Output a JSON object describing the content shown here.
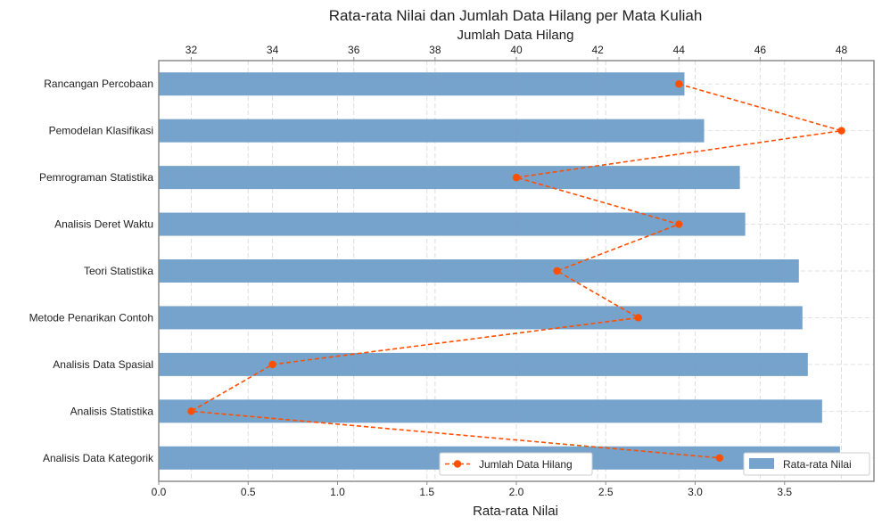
{
  "chart_data": {
    "type": "bar",
    "orientation": "horizontal",
    "title": "Rata-rata Nilai dan Jumlah Data Hilang per Mata Kuliah",
    "categories": [
      "Rancangan Percobaan",
      "Pemodelan Klasifikasi",
      "Pemrograman Statistika",
      "Analisis Deret Waktu",
      "Teori Statistika",
      "Metode Penarikan Contoh",
      "Analisis Data Spasial",
      "Analisis Statistika",
      "Analisis Data Kategorik"
    ],
    "bar_series": {
      "name": "Rata-rata Nilai",
      "color": "#6f9ec8",
      "values": [
        2.94,
        3.05,
        3.25,
        3.28,
        3.58,
        3.6,
        3.63,
        3.71,
        3.81
      ]
    },
    "line_series": {
      "name": "Jumlah Data Hilang",
      "color": "#ff4f00",
      "values": [
        44,
        48,
        40,
        44,
        41,
        43,
        34,
        32,
        45
      ]
    },
    "xlabel": "Rata-rata Nilai",
    "xlim": [
      0,
      4.0
    ],
    "xticks": [
      0.0,
      0.5,
      1.0,
      1.5,
      2.0,
      2.5,
      3.0,
      3.5
    ],
    "x2label": "Jumlah Data Hilang",
    "x2lim": [
      31.2,
      48.8
    ],
    "x2ticks": [
      32,
      34,
      36,
      38,
      40,
      42,
      44,
      46,
      48
    ],
    "grid": true,
    "legend_line_position": "bottom-center",
    "legend_bar_position": "bottom-right"
  }
}
